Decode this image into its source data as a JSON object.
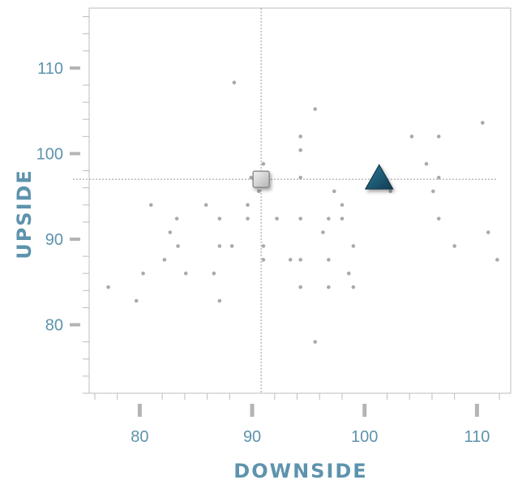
{
  "chart_data": {
    "type": "scatter",
    "xlabel": "DOWNSIDE",
    "ylabel": "UPSIDE",
    "xlim": [
      75.5,
      113.0
    ],
    "ylim": [
      72.0,
      117.0
    ],
    "x_ticks": [
      80,
      90,
      100,
      110
    ],
    "y_ticks": [
      80,
      90,
      100,
      110
    ],
    "grid": false,
    "reference_lines": {
      "x": 90.8,
      "y": 97.0
    },
    "colors": {
      "axis_text": "#5e93ad",
      "points": "#aaaaaa",
      "triangle": "#1c5670",
      "square": "#c8c8c8"
    },
    "series": [
      {
        "marker": "dot",
        "points": [
          [
            77.2,
            84.4
          ],
          [
            79.7,
            82.8
          ],
          [
            80.3,
            86.0
          ],
          [
            81.0,
            94.0
          ],
          [
            82.2,
            87.6
          ],
          [
            82.7,
            90.8
          ],
          [
            83.3,
            92.4
          ],
          [
            83.4,
            89.2
          ],
          [
            84.1,
            86.0
          ],
          [
            85.9,
            94.0
          ],
          [
            86.6,
            86.0
          ],
          [
            87.1,
            92.4
          ],
          [
            87.1,
            89.2
          ],
          [
            87.1,
            82.8
          ],
          [
            88.2,
            89.2
          ],
          [
            88.4,
            108.3
          ],
          [
            89.6,
            92.4
          ],
          [
            89.6,
            94.0
          ],
          [
            89.9,
            97.2
          ],
          [
            90.6,
            95.6
          ],
          [
            91.0,
            98.8
          ],
          [
            91.0,
            89.2
          ],
          [
            91.0,
            87.6
          ],
          [
            92.2,
            92.4
          ],
          [
            93.4,
            87.6
          ],
          [
            94.3,
            102.0
          ],
          [
            94.3,
            100.4
          ],
          [
            94.3,
            97.2
          ],
          [
            94.3,
            92.4
          ],
          [
            94.3,
            87.6
          ],
          [
            94.3,
            84.4
          ],
          [
            95.6,
            105.2
          ],
          [
            95.6,
            78.0
          ],
          [
            96.3,
            90.8
          ],
          [
            96.8,
            92.4
          ],
          [
            96.8,
            87.6
          ],
          [
            96.8,
            84.4
          ],
          [
            97.3,
            95.6
          ],
          [
            98.0,
            92.4
          ],
          [
            98.0,
            94.0
          ],
          [
            98.6,
            86.0
          ],
          [
            99.0,
            84.4
          ],
          [
            99.0,
            89.2
          ],
          [
            102.3,
            95.6
          ],
          [
            104.2,
            102.0
          ],
          [
            105.5,
            98.8
          ],
          [
            106.1,
            95.6
          ],
          [
            106.6,
            97.2
          ],
          [
            106.6,
            102.0
          ],
          [
            106.6,
            92.4
          ],
          [
            108.0,
            89.2
          ],
          [
            110.5,
            103.6
          ],
          [
            111.0,
            90.8
          ],
          [
            111.8,
            87.6
          ]
        ]
      },
      {
        "marker": "square",
        "points": [
          [
            90.8,
            97.0
          ]
        ]
      },
      {
        "marker": "triangle",
        "points": [
          [
            101.3,
            97.0
          ]
        ]
      }
    ]
  }
}
